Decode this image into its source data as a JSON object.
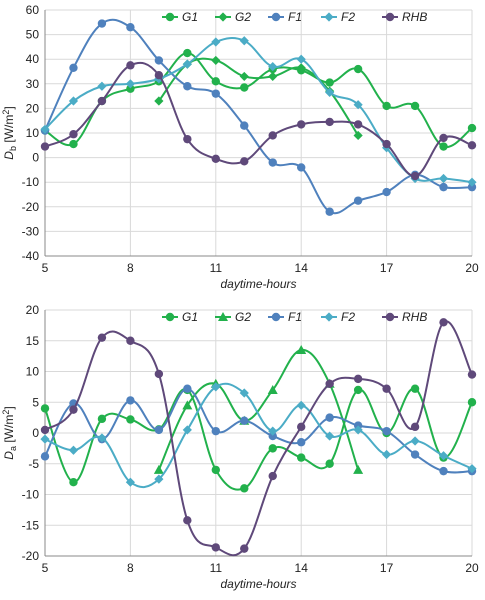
{
  "chart_data": [
    {
      "type": "line",
      "ylabel_main": "D",
      "ylabel_sub": "b",
      "ylabel_unit": " [W/m",
      "ylabel_sup": "2",
      "ylabel_close": "]",
      "xlabel": "daytime-hours",
      "xlim": [
        5,
        20
      ],
      "ylim": [
        -40,
        60
      ],
      "xticks": [
        5,
        8,
        11,
        14,
        17,
        20
      ],
      "yticks": [
        -40,
        -30,
        -20,
        -10,
        0,
        10,
        20,
        30,
        40,
        50,
        60
      ],
      "legend_position": "top-right",
      "series": [
        {
          "name": "G1",
          "color": "#22b14c",
          "marker": "circle",
          "x": [
            5,
            6,
            7,
            8,
            9,
            10,
            11,
            12,
            13,
            14,
            15,
            16,
            17,
            18,
            19,
            20
          ],
          "y": [
            11,
            5.5,
            23,
            28,
            31,
            42.5,
            31,
            28.5,
            36,
            35.5,
            30.5,
            36,
            21,
            21,
            4.5,
            12
          ]
        },
        {
          "name": "G2",
          "color": "#22b14c",
          "marker": "diamond",
          "x": [
            9,
            10,
            11,
            12,
            13,
            14,
            15,
            16
          ],
          "y": [
            23,
            38,
            39.5,
            33,
            33,
            36.5,
            27,
            9
          ]
        },
        {
          "name": "F1",
          "color": "#4f81bd",
          "marker": "circle",
          "x": [
            5,
            6,
            7,
            8,
            9,
            10,
            11,
            12,
            13,
            14,
            15,
            16,
            17,
            18,
            19,
            20
          ],
          "y": [
            11,
            36.5,
            54.5,
            53,
            39.5,
            29,
            26,
            13,
            -2,
            -4,
            -22,
            -17.5,
            -14,
            -7,
            -12,
            -12
          ]
        },
        {
          "name": "F2",
          "color": "#4bacc6",
          "marker": "diamond",
          "x": [
            5,
            6,
            7,
            8,
            9,
            10,
            11,
            12,
            13,
            14,
            15,
            16,
            17,
            18,
            19,
            20
          ],
          "y": [
            11.5,
            23,
            29,
            30,
            32,
            38,
            47,
            47.5,
            37,
            40,
            26.5,
            21.5,
            4,
            -8.5,
            -8.5,
            -10
          ]
        },
        {
          "name": "RHB",
          "color": "#5f497a",
          "marker": "circle",
          "x": [
            5,
            6,
            7,
            8,
            9,
            10,
            11,
            12,
            13,
            14,
            15,
            16,
            17,
            18,
            19,
            20
          ],
          "y": [
            4.5,
            9.5,
            23,
            37.5,
            33.5,
            7.5,
            -0.5,
            -1.5,
            9,
            13.5,
            14.5,
            13.5,
            5.5,
            -7.5,
            8,
            5
          ]
        }
      ]
    },
    {
      "type": "line",
      "ylabel_main": "D",
      "ylabel_sub": "a",
      "ylabel_unit": " [W/m",
      "ylabel_sup": "2",
      "ylabel_close": "]",
      "xlabel": "daytime-hours",
      "xlim": [
        5,
        20
      ],
      "ylim": [
        -20,
        20
      ],
      "xticks": [
        5,
        8,
        11,
        14,
        17,
        20
      ],
      "yticks": [
        -20,
        -15,
        -10,
        -5,
        0,
        5,
        10,
        15,
        20
      ],
      "legend_position": "top-right",
      "series": [
        {
          "name": "G1",
          "color": "#22b14c",
          "marker": "circle",
          "x": [
            5,
            6,
            7,
            8,
            9,
            10,
            11,
            12,
            13,
            14,
            15,
            16,
            17,
            18,
            19,
            20
          ],
          "y": [
            4,
            -8,
            2.3,
            2.2,
            0.6,
            7,
            -6,
            -9,
            -2.5,
            -4,
            -5,
            7,
            0,
            7.2,
            -4,
            5
          ]
        },
        {
          "name": "G2",
          "color": "#22b14c",
          "marker": "triangle",
          "x": [
            9,
            10,
            11,
            12,
            13,
            14,
            15,
            16
          ],
          "y": [
            -6,
            4.5,
            8,
            2,
            7,
            13.5,
            8,
            -6
          ]
        },
        {
          "name": "F1",
          "color": "#4f81bd",
          "marker": "circle",
          "x": [
            5,
            6,
            7,
            8,
            9,
            10,
            11,
            12,
            13,
            14,
            15,
            16,
            17,
            18,
            19,
            20
          ],
          "y": [
            -3.8,
            4.8,
            -1,
            5.3,
            0.5,
            7.2,
            0.3,
            2,
            -0.5,
            -1.5,
            2.5,
            1.2,
            0.3,
            -3.5,
            -6.2,
            -6.2
          ]
        },
        {
          "name": "F2",
          "color": "#4bacc6",
          "marker": "diamond",
          "x": [
            5,
            6,
            7,
            8,
            9,
            10,
            11,
            12,
            13,
            14,
            15,
            16,
            17,
            18,
            19,
            20
          ],
          "y": [
            -1,
            -2.8,
            -0.8,
            -8,
            -7.5,
            0.5,
            7.5,
            6.5,
            0.3,
            4.5,
            -0.5,
            0.5,
            -3.5,
            -1.3,
            -3.7,
            -5.8
          ]
        },
        {
          "name": "RHB",
          "color": "#5f497a",
          "marker": "circle",
          "x": [
            5,
            6,
            7,
            8,
            9,
            10,
            11,
            12,
            13,
            14,
            15,
            16,
            17,
            18,
            19,
            20
          ],
          "y": [
            0.5,
            3.8,
            15.5,
            15,
            9.6,
            -14.2,
            -18.6,
            -18.8,
            -7,
            1,
            8,
            8.8,
            7.2,
            1,
            18,
            9.5
          ]
        }
      ]
    }
  ]
}
